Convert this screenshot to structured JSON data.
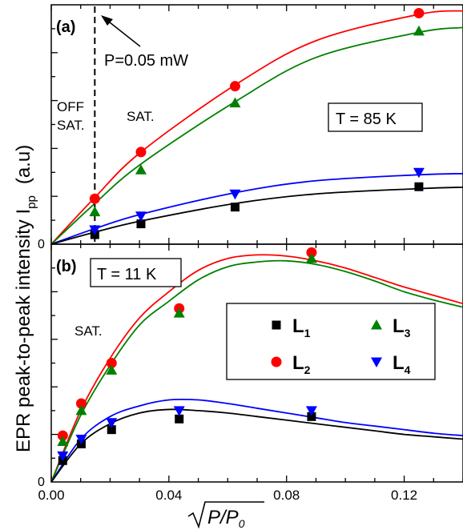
{
  "chart_data": [
    {
      "panel": "(a)",
      "type": "scatter",
      "annotations": {
        "temperature": "T = 85 K",
        "power_marker": "P=0.05 mW",
        "off_sat_line1": "OFF",
        "off_sat_line2": "SAT.",
        "sat": "SAT."
      },
      "marker_x": 0.0148,
      "xlim": [
        0,
        0.14
      ],
      "ylim": [
        0,
        1
      ],
      "ylabel": "EPR peak-to-peak intensity I",
      "ylabel_subscript": "pp",
      "ylabel_unit": "(a.u)",
      "series": [
        {
          "name": "L1",
          "color": "#000000",
          "marker": "square",
          "x": [
            0.0148,
            0.0305,
            0.0625,
            0.125
          ],
          "y": [
            0.04,
            0.085,
            0.155,
            0.24
          ]
        },
        {
          "name": "L2",
          "color": "#ff0000",
          "marker": "circle",
          "x": [
            0.0148,
            0.0305,
            0.0625,
            0.125
          ],
          "y": [
            0.19,
            0.385,
            0.66,
            0.965
          ]
        },
        {
          "name": "L3",
          "color": "#008000",
          "marker": "triangle-up",
          "x": [
            0.0148,
            0.0305,
            0.0625,
            0.125
          ],
          "y": [
            0.135,
            0.31,
            0.59,
            0.89
          ]
        },
        {
          "name": "L4",
          "color": "#0000ff",
          "marker": "triangle-down",
          "x": [
            0.0148,
            0.0305,
            0.0625,
            0.125
          ],
          "y": [
            0.06,
            0.118,
            0.21,
            0.3
          ]
        }
      ],
      "fits": [
        {
          "color": "#ff0000",
          "x": [
            0,
            0.0148,
            0.0305,
            0.0625,
            0.09,
            0.125,
            0.14
          ],
          "y": [
            0,
            0.195,
            0.385,
            0.665,
            0.85,
            0.96,
            0.975
          ]
        },
        {
          "color": "#008000",
          "x": [
            0,
            0.0148,
            0.0305,
            0.0625,
            0.09,
            0.125,
            0.14
          ],
          "y": [
            0,
            0.17,
            0.335,
            0.595,
            0.78,
            0.885,
            0.905
          ]
        },
        {
          "color": "#0000ff",
          "x": [
            0,
            0.0148,
            0.0305,
            0.0625,
            0.09,
            0.125,
            0.14
          ],
          "y": [
            0,
            0.065,
            0.125,
            0.215,
            0.265,
            0.29,
            0.295
          ]
        },
        {
          "color": "#000000",
          "x": [
            0,
            0.0148,
            0.0305,
            0.0625,
            0.09,
            0.125,
            0.14
          ],
          "y": [
            0,
            0.05,
            0.097,
            0.17,
            0.21,
            0.232,
            0.238
          ]
        }
      ]
    },
    {
      "panel": "(b)",
      "type": "scatter",
      "annotations": {
        "temperature": "T = 11 K",
        "sat": "SAT."
      },
      "xlabel": "√P/P0",
      "xlim": [
        0,
        0.14
      ],
      "ylim": [
        0,
        1
      ],
      "xticks": [
        "0.00",
        "0.04",
        "0.08",
        "0.12"
      ],
      "xtick_values": [
        0,
        0.04,
        0.08,
        0.12
      ],
      "y_origin_label": "0",
      "legend": {
        "placement": "right",
        "entries": [
          {
            "label": "L",
            "sub": "1",
            "series": 0
          },
          {
            "label": "L",
            "sub": "3",
            "series": 2
          },
          {
            "label": "L",
            "sub": "2",
            "series": 1
          },
          {
            "label": "L",
            "sub": "4",
            "series": 3
          }
        ]
      },
      "series": [
        {
          "name": "L1",
          "color": "#000000",
          "marker": "square",
          "x": [
            0.0039,
            0.0102,
            0.0205,
            0.0435,
            0.0885
          ],
          "y": [
            0.09,
            0.16,
            0.22,
            0.265,
            0.275
          ]
        },
        {
          "name": "L2",
          "color": "#ff0000",
          "marker": "circle",
          "x": [
            0.0039,
            0.0102,
            0.0205,
            0.0435,
            0.0885
          ],
          "y": [
            0.195,
            0.33,
            0.5,
            0.73,
            0.965
          ]
        },
        {
          "name": "L3",
          "color": "#008000",
          "marker": "triangle-up",
          "x": [
            0.0039,
            0.0102,
            0.0205,
            0.0435,
            0.0885
          ],
          "y": [
            0.17,
            0.3,
            0.47,
            0.71,
            0.94
          ]
        },
        {
          "name": "L4",
          "color": "#0000ff",
          "marker": "triangle-down",
          "x": [
            0.0039,
            0.0102,
            0.0205,
            0.0435,
            0.0885
          ],
          "y": [
            0.11,
            0.18,
            0.25,
            0.3,
            0.3
          ]
        }
      ],
      "fits": [
        {
          "color": "#ff0000",
          "x": [
            0,
            0.01,
            0.02,
            0.03,
            0.04,
            0.05,
            0.06,
            0.07,
            0.08,
            0.09,
            0.1,
            0.11,
            0.12,
            0.13,
            0.14
          ],
          "y": [
            0,
            0.3,
            0.52,
            0.69,
            0.8,
            0.89,
            0.94,
            0.955,
            0.95,
            0.93,
            0.9,
            0.86,
            0.82,
            0.785,
            0.75
          ]
        },
        {
          "color": "#008000",
          "x": [
            0,
            0.01,
            0.02,
            0.03,
            0.04,
            0.05,
            0.06,
            0.07,
            0.08,
            0.09,
            0.1,
            0.11,
            0.12,
            0.13,
            0.14
          ],
          "y": [
            0,
            0.28,
            0.49,
            0.66,
            0.76,
            0.85,
            0.905,
            0.925,
            0.93,
            0.915,
            0.885,
            0.845,
            0.8,
            0.765,
            0.735
          ]
        },
        {
          "color": "#0000ff",
          "x": [
            0,
            0.01,
            0.02,
            0.03,
            0.04,
            0.05,
            0.06,
            0.07,
            0.08,
            0.09,
            0.1,
            0.11,
            0.12,
            0.13,
            0.14
          ],
          "y": [
            0,
            0.18,
            0.275,
            0.32,
            0.345,
            0.345,
            0.33,
            0.31,
            0.29,
            0.27,
            0.25,
            0.235,
            0.22,
            0.205,
            0.195
          ]
        },
        {
          "color": "#000000",
          "x": [
            0,
            0.01,
            0.02,
            0.03,
            0.04,
            0.05,
            0.06,
            0.07,
            0.08,
            0.09,
            0.1,
            0.11,
            0.12,
            0.13,
            0.14
          ],
          "y": [
            0,
            0.16,
            0.245,
            0.29,
            0.305,
            0.3,
            0.29,
            0.275,
            0.26,
            0.245,
            0.23,
            0.215,
            0.2,
            0.19,
            0.18
          ]
        }
      ]
    }
  ]
}
